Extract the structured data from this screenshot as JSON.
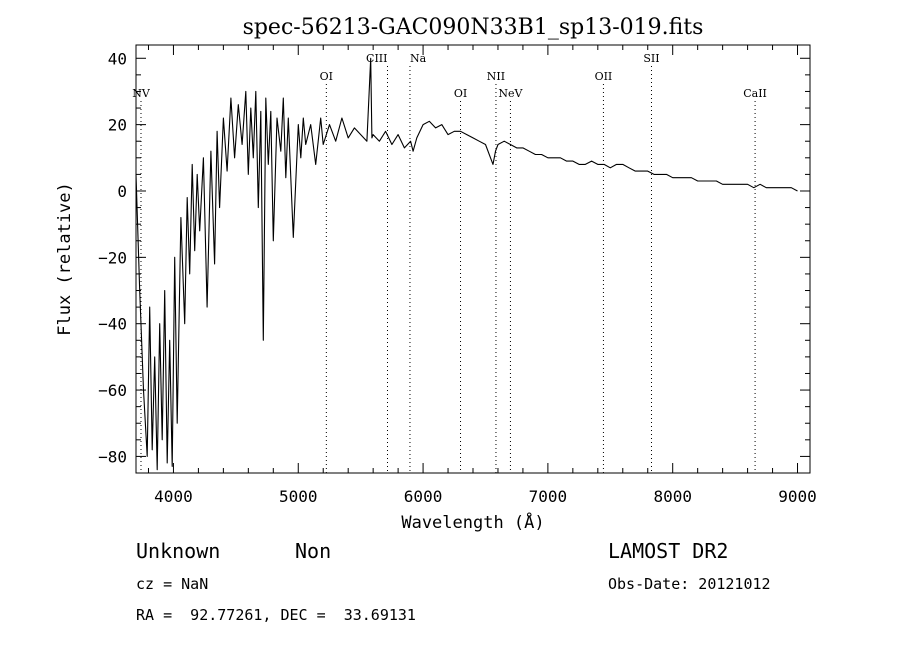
{
  "chart_data": {
    "type": "line",
    "title": "spec-56213-GAC090N33B1_sp13-019.fits",
    "xlabel": "Wavelength (Å)",
    "ylabel": "Flux (relative)",
    "xlim": [
      3700,
      9100
    ],
    "ylim": [
      -85,
      44
    ],
    "x_ticks": [
      4000,
      5000,
      6000,
      7000,
      8000,
      9000
    ],
    "y_ticks": [
      -80,
      -60,
      -40,
      -20,
      0,
      20,
      40
    ],
    "series": [
      {
        "x": [
          3700,
          3730,
          3760,
          3790,
          3810,
          3830,
          3850,
          3870,
          3890,
          3910,
          3930,
          3950,
          3970,
          3990,
          4010,
          4030,
          4060,
          4090,
          4110,
          4130,
          4150,
          4170,
          4190,
          4210,
          4240,
          4270,
          4300,
          4330,
          4350,
          4370,
          4400,
          4430,
          4460,
          4490,
          4520,
          4550,
          4580,
          4600,
          4620,
          4640,
          4660,
          4680,
          4700,
          4720,
          4740,
          4760,
          4780,
          4800,
          4830,
          4860,
          4880,
          4900,
          4920,
          4960,
          5000,
          5020,
          5040,
          5060,
          5100,
          5140,
          5180,
          5200,
          5250,
          5300,
          5350,
          5400,
          5450,
          5500,
          5550,
          5580,
          5590,
          5600,
          5650,
          5700,
          5750,
          5800,
          5850,
          5900,
          5920,
          5950,
          6000,
          6050,
          6100,
          6150,
          6200,
          6250,
          6300,
          6350,
          6400,
          6450,
          6500,
          6540,
          6560,
          6580,
          6600,
          6650,
          6700,
          6750,
          6800,
          6850,
          6900,
          6950,
          7000,
          7050,
          7100,
          7150,
          7200,
          7250,
          7300,
          7350,
          7400,
          7450,
          7500,
          7550,
          7600,
          7650,
          7700,
          7750,
          7800,
          7850,
          7900,
          7950,
          8000,
          8050,
          8100,
          8150,
          8200,
          8250,
          8300,
          8350,
          8400,
          8450,
          8500,
          8550,
          8600,
          8650,
          8700,
          8750,
          8800,
          8850,
          8900,
          8950,
          9000
        ],
        "y": [
          5,
          -30,
          -60,
          -80,
          -35,
          -78,
          -50,
          -84,
          -40,
          -75,
          -30,
          -82,
          -45,
          -83,
          -20,
          -70,
          -8,
          -40,
          -2,
          -25,
          8,
          -18,
          5,
          -12,
          10,
          -35,
          12,
          -22,
          18,
          -5,
          22,
          6,
          28,
          10,
          26,
          14,
          30,
          5,
          25,
          10,
          30,
          -5,
          24,
          -45,
          28,
          8,
          24,
          -15,
          22,
          12,
          28,
          4,
          22,
          -14,
          20,
          10,
          22,
          14,
          20,
          8,
          22,
          14,
          20,
          15,
          22,
          16,
          19,
          17,
          15,
          40,
          16,
          17,
          15,
          18,
          14,
          17,
          13,
          15,
          12,
          16,
          20,
          21,
          19,
          20,
          17,
          18,
          18,
          17,
          16,
          15,
          14,
          10,
          8,
          12,
          14,
          15,
          14,
          13,
          13,
          12,
          11,
          11,
          10,
          10,
          10,
          9,
          9,
          8,
          8,
          9,
          8,
          8,
          7,
          8,
          8,
          7,
          6,
          6,
          6,
          5,
          5,
          5,
          4,
          4,
          4,
          4,
          3,
          3,
          3,
          3,
          2,
          2,
          2,
          2,
          2,
          1,
          2,
          1,
          1,
          1,
          1,
          1,
          0
        ]
      }
    ],
    "lines": [
      {
        "name": "NV",
        "x": 3740,
        "row": 3
      },
      {
        "name": "OI",
        "x": 5225,
        "row": 2
      },
      {
        "name": "CIII",
        "x": 5715,
        "row": 1
      },
      {
        "name": "Na",
        "x": 5895,
        "row": 1
      },
      {
        "name": "OI",
        "x": 6300,
        "row": 3
      },
      {
        "name": "NII",
        "x": 6584,
        "row": 2
      },
      {
        "name": "NeV",
        "x": 6700,
        "row": 3
      },
      {
        "name": "OII",
        "x": 7445,
        "row": 2
      },
      {
        "name": "SII",
        "x": 7830,
        "row": 1
      },
      {
        "name": "CaII",
        "x": 8660,
        "row": 3
      }
    ]
  },
  "footer": {
    "classification": "Unknown",
    "subclass": "Non",
    "cz": "cz = NaN",
    "coords": "RA =  92.77261, DEC =  33.69131",
    "survey": "LAMOST DR2",
    "obs_date": "Obs-Date: 20121012"
  }
}
